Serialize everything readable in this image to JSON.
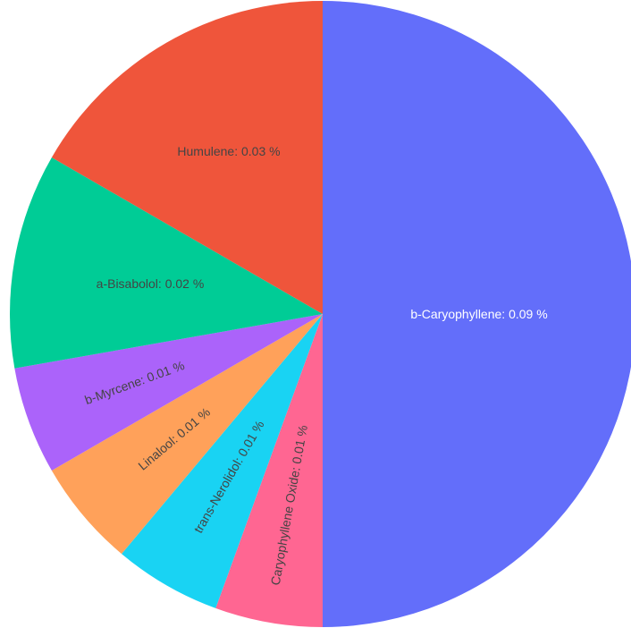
{
  "chart_data": {
    "type": "pie",
    "title": "",
    "legend": "none",
    "unit": "%",
    "start_angle_deg": 90,
    "direction": "clockwise",
    "slices": [
      {
        "label": "b-Caryophyllene",
        "value": 0.09,
        "color": "#636efa",
        "text": "b-Caryophyllene: 0.09 %",
        "text_color": "#ffffff",
        "text_orientation": "horizontal"
      },
      {
        "label": "Caryophyllene Oxide",
        "value": 0.01,
        "color": "#ff6692",
        "text": "Caryophyllene Oxide: 0.01 %",
        "text_color": "#444444",
        "text_orientation": "radial"
      },
      {
        "label": "trans-Nerolidol",
        "value": 0.01,
        "color": "#19d3f3",
        "text": "trans-Nerolidol: 0.01 %",
        "text_color": "#444444",
        "text_orientation": "radial"
      },
      {
        "label": "Linalool",
        "value": 0.01,
        "color": "#ffa15a",
        "text": "Linalool: 0.01 %",
        "text_color": "#444444",
        "text_orientation": "radial"
      },
      {
        "label": "b-Myrcene",
        "value": 0.01,
        "color": "#ab63fa",
        "text": "b-Myrcene: 0.01 %",
        "text_color": "#444444",
        "text_orientation": "radial"
      },
      {
        "label": "a-Bisabolol",
        "value": 0.02,
        "color": "#00cc96",
        "text": "a-Bisabolol: 0.02 %",
        "text_color": "#444444",
        "text_orientation": "horizontal"
      },
      {
        "label": "Humulene",
        "value": 0.03,
        "color": "#ef553b",
        "text": "Humulene: 0.03 %",
        "text_color": "#444444",
        "text_orientation": "horizontal"
      }
    ]
  }
}
